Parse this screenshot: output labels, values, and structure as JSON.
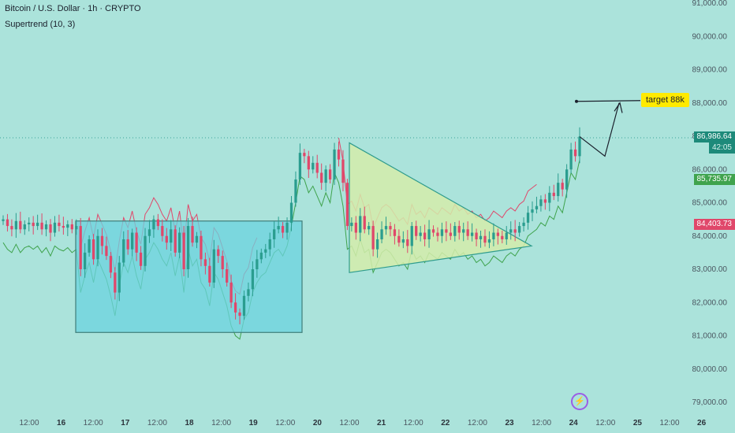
{
  "header": {
    "title": "Bitcoin / U.S. Dollar · 1h · CRYPTO",
    "indicator": "Supertrend (10, 3)"
  },
  "annotations": {
    "target_label": "target 88k"
  },
  "price_tags": {
    "current_price": "86,986.64",
    "countdown": "42:05",
    "support_up": "85,735.97",
    "resist_down": "84,403.73"
  },
  "colors": {
    "background": "#abe3db",
    "bull_candle": "#2a9d8f",
    "bear_candle": "#e0476a",
    "supertrend_up": "#3fa34d",
    "supertrend_down": "#e0476a",
    "box_fill": "#6bd3df",
    "triangle_fill": "#d4ecaa",
    "target_label": "#ffea00"
  },
  "chart_data": {
    "type": "candlestick",
    "title": "",
    "ylim": [
      79000,
      91000
    ],
    "y_ticks": [
      "91,000.00",
      "90,000.00",
      "89,000.00",
      "88,000.00",
      "87,000.00",
      "86,000.00",
      "85,000.00",
      "84,000.00",
      "83,000.00",
      "82,000.00",
      "81,000.00",
      "80,000.00",
      "79,000.00"
    ],
    "y_values": [
      91000,
      90000,
      89000,
      88000,
      87000,
      86000,
      85000,
      84000,
      83000,
      82000,
      81000,
      80000,
      79000
    ],
    "x_ticks": [
      "12:00",
      "16",
      "12:00",
      "17",
      "12:00",
      "18",
      "12:00",
      "19",
      "12:00",
      "20",
      "12:00",
      "21",
      "12:00",
      "22",
      "12:00",
      "23",
      "12:00",
      "24",
      "12:00",
      "25",
      "12:00",
      "26"
    ],
    "grid": false,
    "last_price": 86986.64,
    "supertrend_up_value": 85735.97,
    "supertrend_down_value": 84403.73,
    "target": 88000,
    "close_series": [
      84500,
      84300,
      84200,
      84450,
      84200,
      84350,
      84400,
      84300,
      84400,
      84200,
      84350,
      84100,
      84400,
      84300,
      84250,
      84350,
      84200,
      84300,
      83000,
      83500,
      83900,
      83300,
      84000,
      83700,
      83400,
      82900,
      82300,
      83200,
      83900,
      83600,
      84100,
      83500,
      83100,
      84000,
      84200,
      84500,
      84300,
      84000,
      83800,
      84200,
      83500,
      84100,
      83000,
      84300,
      83800,
      84000,
      83300,
      83100,
      82600,
      83600,
      83400,
      83000,
      82600,
      82000,
      81700,
      81600,
      82200,
      82400,
      83000,
      83300,
      83500,
      83600,
      83900,
      84200,
      84300,
      84100,
      84400,
      85000,
      85700,
      86500,
      86400,
      86000,
      86200,
      85900,
      85600,
      86000,
      85700,
      86600,
      86300,
      85600,
      84300,
      84400,
      84100,
      84600,
      84200,
      84300,
      83600,
      83900,
      84200,
      84300,
      84200,
      84000,
      83800,
      83900,
      83700,
      84300,
      84000,
      84100,
      83900,
      84200,
      84100,
      84000,
      84200,
      84100,
      84000,
      84300,
      84100,
      84200,
      84000,
      84100,
      83900,
      84000,
      83800,
      83900,
      84100,
      84000,
      83900,
      84100,
      84200,
      84100,
      84300,
      84400,
      84700,
      84800,
      84900,
      85100,
      85000,
      85300,
      85200,
      85600,
      85400,
      86000,
      86600,
      86400,
      86987
    ],
    "series": []
  }
}
